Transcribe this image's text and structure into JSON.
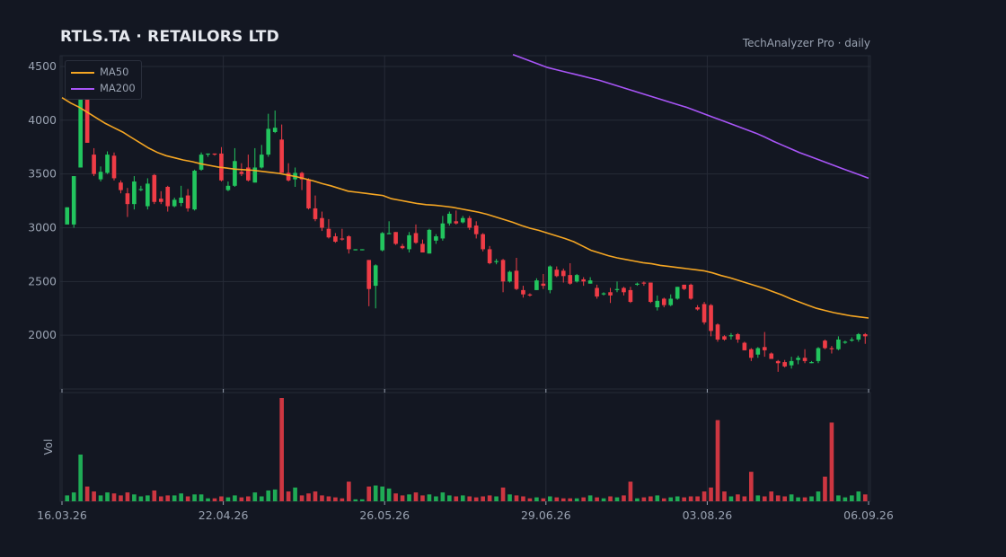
{
  "header": {
    "title": "RTLS.TA  ·  RETAILORS LTD",
    "source": "TechAnalyzer Pro · daily"
  },
  "legend": [
    {
      "label": "MA50",
      "color": "#f5a623"
    },
    {
      "label": "MA200",
      "color": "#a855f7"
    }
  ],
  "colors": {
    "up": "#22c55e",
    "down": "#ef3c46",
    "background": "#131722",
    "grid": "#262b37"
  },
  "chart_data": {
    "type": "candlestick",
    "title": "RTLS.TA  ·  RETAILORS LTD",
    "price_axis": {
      "ticks": [
        2000,
        2500,
        3000,
        3500,
        4000,
        4500
      ],
      "range": [
        1500,
        4600
      ]
    },
    "volume_axis": {
      "label": "Vol"
    },
    "x_axis": {
      "tick_labels": [
        "16.03.26",
        "22.04.26",
        "26.05.26",
        "29.06.26",
        "03.08.26",
        "06.09.26"
      ]
    },
    "grid": true,
    "legend_position": "top-left",
    "series": [
      {
        "name": "MA50",
        "type": "line",
        "color": "#f5a623",
        "points": [
          [
            0,
            4210
          ],
          [
            10,
            4160
          ],
          [
            20,
            4120
          ],
          [
            30,
            4070
          ],
          [
            40,
            4020
          ],
          [
            50,
            3970
          ],
          [
            60,
            3930
          ],
          [
            70,
            3890
          ],
          [
            80,
            3840
          ],
          [
            90,
            3790
          ],
          [
            100,
            3740
          ],
          [
            110,
            3700
          ],
          [
            120,
            3670
          ],
          [
            130,
            3650
          ],
          [
            140,
            3630
          ],
          [
            150,
            3615
          ],
          [
            160,
            3595
          ],
          [
            170,
            3580
          ],
          [
            180,
            3565
          ],
          [
            190,
            3555
          ],
          [
            200,
            3545
          ],
          [
            210,
            3540
          ],
          [
            220,
            3535
          ],
          [
            230,
            3525
          ],
          [
            240,
            3515
          ],
          [
            250,
            3505
          ],
          [
            260,
            3490
          ],
          [
            270,
            3475
          ],
          [
            280,
            3455
          ],
          [
            290,
            3435
          ],
          [
            300,
            3410
          ],
          [
            310,
            3390
          ],
          [
            320,
            3365
          ],
          [
            330,
            3340
          ],
          [
            340,
            3330
          ],
          [
            350,
            3320
          ],
          [
            360,
            3310
          ],
          [
            370,
            3300
          ],
          [
            380,
            3270
          ],
          [
            390,
            3255
          ],
          [
            400,
            3240
          ],
          [
            410,
            3225
          ],
          [
            420,
            3215
          ],
          [
            430,
            3210
          ],
          [
            440,
            3200
          ],
          [
            450,
            3190
          ],
          [
            460,
            3175
          ],
          [
            470,
            3160
          ],
          [
            480,
            3145
          ],
          [
            490,
            3125
          ],
          [
            500,
            3100
          ],
          [
            510,
            3075
          ],
          [
            520,
            3050
          ],
          [
            530,
            3020
          ],
          [
            540,
            2995
          ],
          [
            550,
            2975
          ],
          [
            560,
            2950
          ],
          [
            570,
            2925
          ],
          [
            580,
            2900
          ],
          [
            590,
            2870
          ],
          [
            600,
            2830
          ],
          [
            610,
            2790
          ],
          [
            620,
            2765
          ],
          [
            630,
            2740
          ],
          [
            640,
            2720
          ],
          [
            650,
            2705
          ],
          [
            660,
            2690
          ],
          [
            670,
            2675
          ],
          [
            680,
            2665
          ],
          [
            690,
            2650
          ],
          [
            700,
            2640
          ],
          [
            710,
            2630
          ],
          [
            720,
            2620
          ],
          [
            730,
            2610
          ],
          [
            740,
            2600
          ],
          [
            750,
            2580
          ],
          [
            760,
            2555
          ],
          [
            770,
            2535
          ],
          [
            780,
            2510
          ],
          [
            790,
            2485
          ],
          [
            800,
            2460
          ],
          [
            810,
            2435
          ],
          [
            820,
            2405
          ],
          [
            830,
            2375
          ],
          [
            840,
            2340
          ],
          [
            850,
            2310
          ],
          [
            860,
            2280
          ],
          [
            870,
            2250
          ],
          [
            880,
            2230
          ],
          [
            890,
            2210
          ],
          [
            900,
            2195
          ],
          [
            910,
            2180
          ],
          [
            920,
            2170
          ],
          [
            930,
            2160
          ]
        ]
      },
      {
        "name": "MA200",
        "type": "line",
        "color": "#a855f7",
        "points": [
          [
            520,
            4610
          ],
          [
            530,
            4580
          ],
          [
            540,
            4550
          ],
          [
            550,
            4520
          ],
          [
            560,
            4490
          ],
          [
            570,
            4470
          ],
          [
            580,
            4450
          ],
          [
            590,
            4430
          ],
          [
            600,
            4410
          ],
          [
            610,
            4390
          ],
          [
            620,
            4370
          ],
          [
            630,
            4345
          ],
          [
            640,
            4320
          ],
          [
            650,
            4295
          ],
          [
            660,
            4270
          ],
          [
            670,
            4245
          ],
          [
            680,
            4220
          ],
          [
            690,
            4195
          ],
          [
            700,
            4170
          ],
          [
            710,
            4145
          ],
          [
            720,
            4120
          ],
          [
            730,
            4090
          ],
          [
            740,
            4060
          ],
          [
            750,
            4030
          ],
          [
            760,
            4000
          ],
          [
            770,
            3970
          ],
          [
            780,
            3940
          ],
          [
            790,
            3910
          ],
          [
            800,
            3880
          ],
          [
            810,
            3845
          ],
          [
            820,
            3805
          ],
          [
            830,
            3770
          ],
          [
            840,
            3735
          ],
          [
            850,
            3700
          ],
          [
            860,
            3670
          ],
          [
            870,
            3640
          ],
          [
            880,
            3610
          ],
          [
            890,
            3580
          ],
          [
            900,
            3550
          ],
          [
            910,
            3520
          ],
          [
            920,
            3490
          ],
          [
            930,
            3460
          ]
        ]
      }
    ],
    "candles": [
      [
        3030,
        3190,
        3050,
        3190,
        12
      ],
      [
        3030,
        3480,
        3000,
        3480,
        18
      ],
      [
        3560,
        4460,
        3560,
        4460,
        95
      ],
      [
        4430,
        3790,
        3790,
        4460,
        30
      ],
      [
        3680,
        3500,
        3480,
        3740,
        20
      ],
      [
        3450,
        3520,
        3430,
        3570,
        12
      ],
      [
        3510,
        3680,
        3500,
        3710,
        18
      ],
      [
        3670,
        3460,
        3440,
        3700,
        16
      ],
      [
        3420,
        3350,
        3320,
        3440,
        12
      ],
      [
        3320,
        3220,
        3100,
        3370,
        18
      ],
      [
        3220,
        3430,
        3170,
        3480,
        14
      ],
      [
        3350,
        3360,
        3340,
        3390,
        10
      ],
      [
        3200,
        3410,
        3170,
        3460,
        12
      ],
      [
        3490,
        3240,
        3220,
        3500,
        22
      ],
      [
        3270,
        3240,
        3220,
        3340,
        10
      ],
      [
        3380,
        3200,
        3150,
        3390,
        12
      ],
      [
        3200,
        3260,
        3190,
        3280,
        12
      ],
      [
        3230,
        3280,
        3200,
        3390,
        16
      ],
      [
        3300,
        3180,
        3150,
        3360,
        10
      ],
      [
        3170,
        3530,
        3160,
        3540,
        14
      ],
      [
        3540,
        3680,
        3530,
        3700,
        14
      ],
      [
        3680,
        3690,
        3660,
        3690,
        6
      ],
      [
        3690,
        3680,
        3670,
        3690,
        6
      ],
      [
        3690,
        3440,
        3430,
        3750,
        10
      ],
      [
        3350,
        3390,
        3340,
        3430,
        8
      ],
      [
        3390,
        3620,
        3380,
        3740,
        12
      ],
      [
        3520,
        3500,
        3480,
        3600,
        8
      ],
      [
        3560,
        3440,
        3430,
        3680,
        10
      ],
      [
        3420,
        3560,
        3420,
        3740,
        18
      ],
      [
        3560,
        3680,
        3550,
        3770,
        10
      ],
      [
        3680,
        3920,
        3660,
        4060,
        22
      ],
      [
        3890,
        3930,
        3880,
        4090,
        24
      ],
      [
        3820,
        3510,
        3510,
        3960,
        210
      ],
      [
        3510,
        3440,
        3430,
        3600,
        20
      ],
      [
        3450,
        3510,
        3380,
        3560,
        28
      ],
      [
        3510,
        3450,
        3350,
        3520,
        12
      ],
      [
        3450,
        3180,
        3170,
        3460,
        16
      ],
      [
        3180,
        3080,
        3060,
        3300,
        20
      ],
      [
        3090,
        3000,
        2970,
        3150,
        12
      ],
      [
        2990,
        2910,
        2900,
        3080,
        10
      ],
      [
        2920,
        2870,
        2860,
        2950,
        8
      ],
      [
        2900,
        2890,
        2880,
        2990,
        6
      ],
      [
        2920,
        2800,
        2760,
        2930,
        40
      ],
      [
        2800,
        2800,
        2790,
        2800,
        4
      ],
      [
        2800,
        2800,
        2790,
        2800,
        4
      ],
      [
        2700,
        2430,
        2270,
        2700,
        30
      ],
      [
        2460,
        2650,
        2250,
        2660,
        32
      ],
      [
        2790,
        2950,
        2780,
        2960,
        30
      ],
      [
        2950,
        2950,
        2940,
        3060,
        26
      ],
      [
        2960,
        2850,
        2840,
        2960,
        16
      ],
      [
        2830,
        2810,
        2800,
        2850,
        12
      ],
      [
        2800,
        2930,
        2770,
        2960,
        14
      ],
      [
        2950,
        2860,
        2850,
        3030,
        18
      ],
      [
        2850,
        2770,
        2770,
        2890,
        12
      ],
      [
        2760,
        2980,
        2760,
        2990,
        14
      ],
      [
        2880,
        2920,
        2850,
        2940,
        10
      ],
      [
        2900,
        3040,
        2880,
        3110,
        18
      ],
      [
        3040,
        3130,
        3020,
        3150,
        12
      ],
      [
        3060,
        3040,
        3030,
        3160,
        10
      ],
      [
        3050,
        3090,
        3040,
        3110,
        12
      ],
      [
        3090,
        3000,
        2980,
        3110,
        10
      ],
      [
        3020,
        2940,
        2900,
        3060,
        8
      ],
      [
        2940,
        2800,
        2780,
        2950,
        10
      ],
      [
        2800,
        2670,
        2660,
        2830,
        12
      ],
      [
        2680,
        2690,
        2660,
        2710,
        10
      ],
      [
        2700,
        2500,
        2400,
        2710,
        28
      ],
      [
        2500,
        2590,
        2490,
        2600,
        14
      ],
      [
        2600,
        2430,
        2420,
        2720,
        12
      ],
      [
        2420,
        2380,
        2350,
        2460,
        10
      ],
      [
        2380,
        2370,
        2360,
        2390,
        6
      ],
      [
        2420,
        2510,
        2420,
        2530,
        8
      ],
      [
        2480,
        2460,
        2430,
        2570,
        6
      ],
      [
        2420,
        2640,
        2390,
        2650,
        10
      ],
      [
        2610,
        2550,
        2540,
        2640,
        8
      ],
      [
        2600,
        2550,
        2490,
        2620,
        6
      ],
      [
        2560,
        2480,
        2470,
        2670,
        6
      ],
      [
        2500,
        2560,
        2490,
        2570,
        6
      ],
      [
        2520,
        2500,
        2460,
        2540,
        8
      ],
      [
        2480,
        2510,
        2480,
        2540,
        12
      ],
      [
        2440,
        2360,
        2340,
        2470,
        8
      ],
      [
        2380,
        2390,
        2370,
        2400,
        6
      ],
      [
        2400,
        2370,
        2300,
        2440,
        10
      ],
      [
        2420,
        2430,
        2400,
        2500,
        8
      ],
      [
        2440,
        2400,
        2370,
        2450,
        12
      ],
      [
        2420,
        2310,
        2300,
        2450,
        40
      ],
      [
        2470,
        2480,
        2460,
        2490,
        6
      ],
      [
        2490,
        2480,
        2460,
        2500,
        8
      ],
      [
        2490,
        2310,
        2300,
        2490,
        10
      ],
      [
        2260,
        2320,
        2230,
        2370,
        12
      ],
      [
        2340,
        2280,
        2260,
        2350,
        6
      ],
      [
        2280,
        2340,
        2270,
        2380,
        8
      ],
      [
        2340,
        2450,
        2330,
        2450,
        10
      ],
      [
        2470,
        2430,
        2420,
        2470,
        8
      ],
      [
        2470,
        2340,
        2330,
        2480,
        10
      ],
      [
        2260,
        2240,
        2230,
        2280,
        10
      ],
      [
        2290,
        2120,
        2100,
        2310,
        20
      ],
      [
        2280,
        2040,
        1990,
        2290,
        28
      ],
      [
        2100,
        1960,
        1940,
        2110,
        165
      ],
      [
        1990,
        1960,
        1950,
        2000,
        20
      ],
      [
        1990,
        2000,
        1960,
        2020,
        10
      ],
      [
        2010,
        1960,
        1930,
        2020,
        14
      ],
      [
        1930,
        1860,
        1860,
        1940,
        10
      ],
      [
        1870,
        1790,
        1760,
        1880,
        60
      ],
      [
        1820,
        1880,
        1790,
        1890,
        12
      ],
      [
        1890,
        1860,
        1800,
        2030,
        10
      ],
      [
        1830,
        1780,
        1780,
        1840,
        20
      ],
      [
        1760,
        1740,
        1660,
        1770,
        12
      ],
      [
        1750,
        1710,
        1700,
        1770,
        10
      ],
      [
        1720,
        1760,
        1690,
        1800,
        14
      ],
      [
        1770,
        1790,
        1730,
        1810,
        8
      ],
      [
        1790,
        1760,
        1740,
        1870,
        8
      ],
      [
        1750,
        1750,
        1740,
        1760,
        10
      ],
      [
        1760,
        1880,
        1740,
        1890,
        20
      ],
      [
        1950,
        1880,
        1870,
        1960,
        50
      ],
      [
        1880,
        1870,
        1830,
        1900,
        160
      ],
      [
        1870,
        1960,
        1860,
        1990,
        12
      ],
      [
        1930,
        1940,
        1920,
        1950,
        8
      ],
      [
        1950,
        1960,
        1940,
        1980,
        12
      ],
      [
        1960,
        2010,
        1940,
        2020,
        20
      ],
      [
        2010,
        1990,
        1920,
        2020,
        14
      ]
    ]
  }
}
